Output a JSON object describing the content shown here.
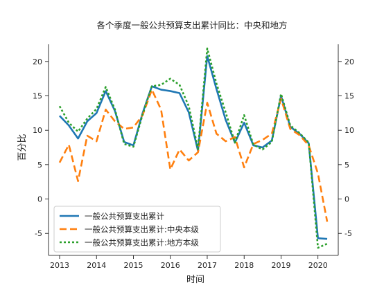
{
  "chart_data": {
    "type": "line",
    "title": "各个季度一般公共预算支出累计同比：中央和地方",
    "xlabel": "时间",
    "ylabel": "百分比",
    "x_range": [
      2012.7,
      2020.55
    ],
    "ylim": [
      -8.2,
      22.5
    ],
    "y_ticks": [
      -5,
      0,
      5,
      10,
      15,
      20
    ],
    "x_ticks": [
      2013,
      2014,
      2015,
      2016,
      2017,
      2018,
      2019,
      2020
    ],
    "legend_position": "lower-left",
    "grid": false,
    "secondary_y_axis": true,
    "x": [
      2013.0,
      2013.25,
      2013.5,
      2013.75,
      2014.0,
      2014.25,
      2014.5,
      2014.75,
      2015.0,
      2015.25,
      2015.5,
      2015.75,
      2016.0,
      2016.25,
      2016.5,
      2016.75,
      2017.0,
      2017.25,
      2017.5,
      2017.75,
      2018.0,
      2018.25,
      2018.5,
      2018.75,
      2019.0,
      2019.25,
      2019.5,
      2019.75,
      2020.0,
      2020.25
    ],
    "series": [
      {
        "name": "一般公共预算支出累计",
        "color": "#1f77b4",
        "style": "solid",
        "values": [
          12.1,
          10.7,
          8.8,
          11.3,
          12.5,
          15.7,
          12.8,
          8.3,
          7.8,
          12.5,
          16.4,
          15.9,
          15.7,
          15.4,
          12.6,
          7.0,
          20.8,
          16.0,
          11.5,
          8.2,
          11.1,
          7.8,
          7.5,
          8.5,
          15.0,
          10.5,
          9.5,
          8.1,
          -5.7,
          -5.8
        ]
      },
      {
        "name": "一般公共预算支出累计:中央本级",
        "color": "#ff7f0e",
        "style": "dashed",
        "values": [
          5.3,
          7.9,
          2.6,
          9.2,
          8.4,
          13.0,
          11.3,
          10.2,
          10.4,
          12.2,
          15.9,
          13.0,
          4.3,
          7.2,
          5.6,
          6.8,
          14.0,
          9.5,
          8.4,
          9.0,
          4.6,
          8.0,
          8.6,
          9.5,
          14.6,
          10.2,
          9.3,
          7.8,
          3.7,
          -3.3
        ]
      },
      {
        "name": "一般公共预算支出累计:地方本级",
        "color": "#2ca02c",
        "style": "dotted",
        "values": [
          13.5,
          11.1,
          9.8,
          11.7,
          13.1,
          16.3,
          13.0,
          8.0,
          7.6,
          12.3,
          16.4,
          16.6,
          17.5,
          16.6,
          13.5,
          7.3,
          21.9,
          16.8,
          12.6,
          8.2,
          12.2,
          7.9,
          7.2,
          8.3,
          15.3,
          10.7,
          9.6,
          8.2,
          -7.1,
          -6.5
        ]
      }
    ]
  }
}
